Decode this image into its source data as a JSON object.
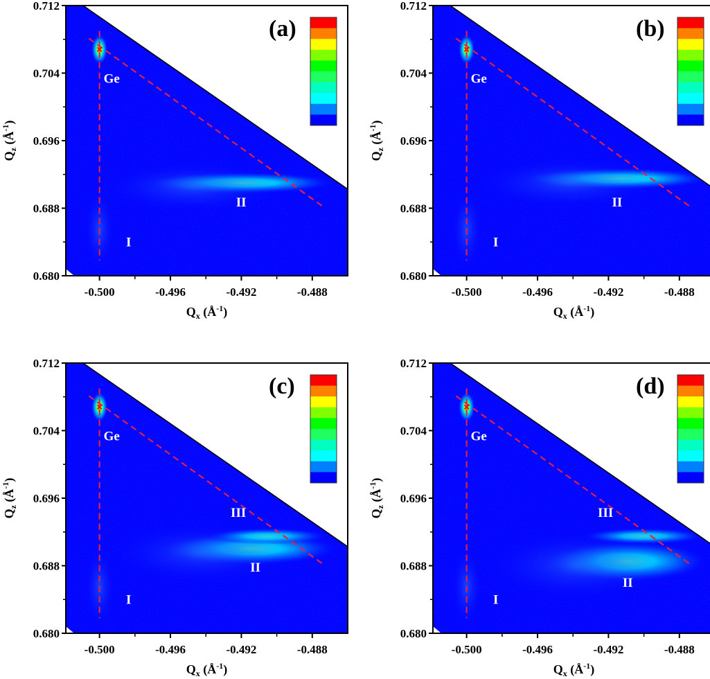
{
  "figure": {
    "panels": [
      {
        "label": "(a)"
      },
      {
        "label": "(b)"
      },
      {
        "label": "(c)"
      },
      {
        "label": "(d)"
      }
    ]
  },
  "axes": {
    "xlabel_main": "Q",
    "xlabel_sub": "x",
    "xlabel_unit": " (Å",
    "xlabel_exp": "-1",
    "xlabel_close": ")",
    "ylabel_main": "Q",
    "ylabel_sub": "z",
    "ylabel_unit": " (Å",
    "ylabel_exp": "-1",
    "ylabel_close": ")",
    "xticks": [
      "-0.500",
      "-0.496",
      "-0.492",
      "-0.488"
    ],
    "yticks": [
      "0.680",
      "0.688",
      "0.696",
      "0.704",
      "0.712"
    ]
  },
  "colors": {
    "background": "#0000ff",
    "frame": "#000000",
    "dashed_line": "#e0204a",
    "colorbar": [
      "#ff0000",
      "#ff8000",
      "#ffff00",
      "#80ff00",
      "#00ff00",
      "#20ff60",
      "#00ffc0",
      "#00ffff",
      "#0080ff",
      "#0000ff"
    ]
  },
  "chart_data": [
    {
      "type": "heatmap",
      "title": "(a)",
      "xlabel": "Qx (Å-1)",
      "ylabel": "Qz (Å-1)",
      "xlim": [
        -0.5019,
        -0.486
      ],
      "ylim": [
        0.68,
        0.712
      ],
      "xticks": [
        -0.5,
        -0.496,
        -0.492,
        -0.488
      ],
      "yticks": [
        0.68,
        0.688,
        0.696,
        0.704,
        0.712
      ],
      "peaks": [
        {
          "name": "Ge",
          "qx": -0.5,
          "qz": 0.7068,
          "intensity": "max"
        },
        {
          "name": "I",
          "qx": -0.5,
          "qz": 0.684,
          "intensity": "low"
        },
        {
          "name": "II",
          "qx": -0.492,
          "qz": 0.691,
          "intensity": "medium"
        }
      ],
      "annotations": [
        "Ge",
        "II",
        "I"
      ],
      "reference_lines": [
        {
          "type": "vertical-dashed",
          "qx": -0.5,
          "qz_range": [
            0.682,
            0.709
          ]
        },
        {
          "type": "diagonal-dashed",
          "from": [
            -0.5006,
            0.7081
          ],
          "to": [
            -0.4874,
            0.6882
          ]
        }
      ],
      "colorbar": "10-level rainbow, blue (low) to red (high), no tick labels"
    },
    {
      "type": "heatmap",
      "title": "(b)",
      "xlabel": "Qx (Å-1)",
      "ylabel": "Qz (Å-1)",
      "xlim": [
        -0.5019,
        -0.486
      ],
      "ylim": [
        0.68,
        0.712
      ],
      "peaks": [
        {
          "name": "Ge",
          "qx": -0.5,
          "qz": 0.7068,
          "intensity": "max"
        },
        {
          "name": "I",
          "qx": -0.5,
          "qz": 0.684,
          "intensity": "low"
        },
        {
          "name": "II",
          "qx": -0.4915,
          "qz": 0.6915,
          "intensity": "medium"
        }
      ],
      "annotations": [
        "Ge",
        "II",
        "I"
      ]
    },
    {
      "type": "heatmap",
      "title": "(c)",
      "xlabel": "Qx (Å-1)",
      "ylabel": "Qz (Å-1)",
      "xlim": [
        -0.5019,
        -0.486
      ],
      "ylim": [
        0.68,
        0.712
      ],
      "peaks": [
        {
          "name": "Ge",
          "qx": -0.5,
          "qz": 0.7068,
          "intensity": "max"
        },
        {
          "name": "I",
          "qx": -0.5,
          "qz": 0.684,
          "intensity": "low"
        },
        {
          "name": "II",
          "qx": -0.4915,
          "qz": 0.69,
          "intensity": "medium"
        },
        {
          "name": "III",
          "qx": -0.4905,
          "qz": 0.6915,
          "intensity": "medium"
        }
      ],
      "annotations": [
        "Ge",
        "III",
        "II",
        "I"
      ]
    },
    {
      "type": "heatmap",
      "title": "(d)",
      "xlabel": "Qx (Å-1)",
      "ylabel": "Qz (Å-1)",
      "xlim": [
        -0.5019,
        -0.486
      ],
      "ylim": [
        0.68,
        0.712
      ],
      "peaks": [
        {
          "name": "Ge",
          "qx": -0.5,
          "qz": 0.7068,
          "intensity": "max"
        },
        {
          "name": "I",
          "qx": -0.5,
          "qz": 0.684,
          "intensity": "low"
        },
        {
          "name": "II",
          "qx": -0.491,
          "qz": 0.6885,
          "intensity": "medium-high"
        },
        {
          "name": "III",
          "qx": -0.49,
          "qz": 0.6915,
          "intensity": "medium"
        }
      ],
      "annotations": [
        "Ge",
        "III",
        "II",
        "I"
      ]
    }
  ],
  "labels": {
    "ge": "Ge",
    "i": "I",
    "ii": "II",
    "iii": "III"
  }
}
